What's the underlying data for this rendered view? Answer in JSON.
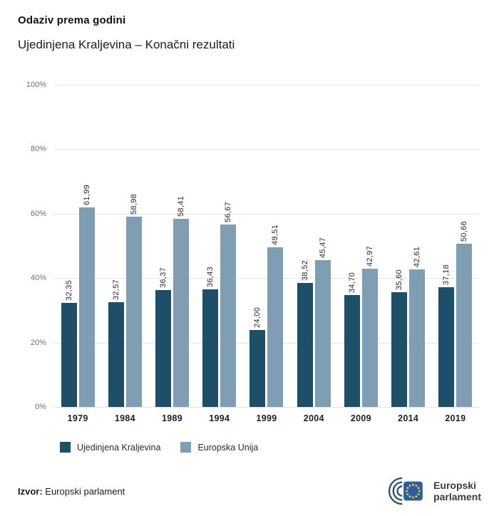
{
  "chart_data": {
    "type": "bar",
    "title": "Odaziv prema godini",
    "subtitle": "Ujedinjena Kraljevina – Konačni rezultati",
    "categories": [
      "1979",
      "1984",
      "1989",
      "1994",
      "1999",
      "2004",
      "2009",
      "2014",
      "2019"
    ],
    "series": [
      {
        "name": "Ujedinjena Kraljevina",
        "color": "#1e4f68",
        "values": [
          32.35,
          32.57,
          36.37,
          36.43,
          24.0,
          38.52,
          34.7,
          35.6,
          37.18
        ],
        "labels": [
          "32,35",
          "32,57",
          "36,37",
          "36,43",
          "24,00",
          "38,52",
          "34,70",
          "35,60",
          "37,18"
        ]
      },
      {
        "name": "Europska Unija",
        "color": "#7f9eb3",
        "values": [
          61.99,
          58.98,
          58.41,
          56.67,
          49.51,
          45.47,
          42.97,
          42.61,
          50.66
        ],
        "labels": [
          "61,99",
          "58,98",
          "58,41",
          "56,67",
          "49,51",
          "45,47",
          "42,97",
          "42,61",
          "50,66"
        ]
      }
    ],
    "y_ticks": [
      "100%",
      "80%",
      "60%",
      "40%",
      "20%",
      "0%"
    ],
    "ylim": [
      0,
      100
    ],
    "grid": true,
    "legend_position": "bottom"
  },
  "footer": {
    "source_label": "Izvor:",
    "source_value": " Europski parlament"
  },
  "logo": {
    "line1": "Europski",
    "line2": "parlament",
    "flag_color": "#2b5ca8",
    "star_color": "#f6c90e",
    "hemicycle_color": "#27506e"
  }
}
